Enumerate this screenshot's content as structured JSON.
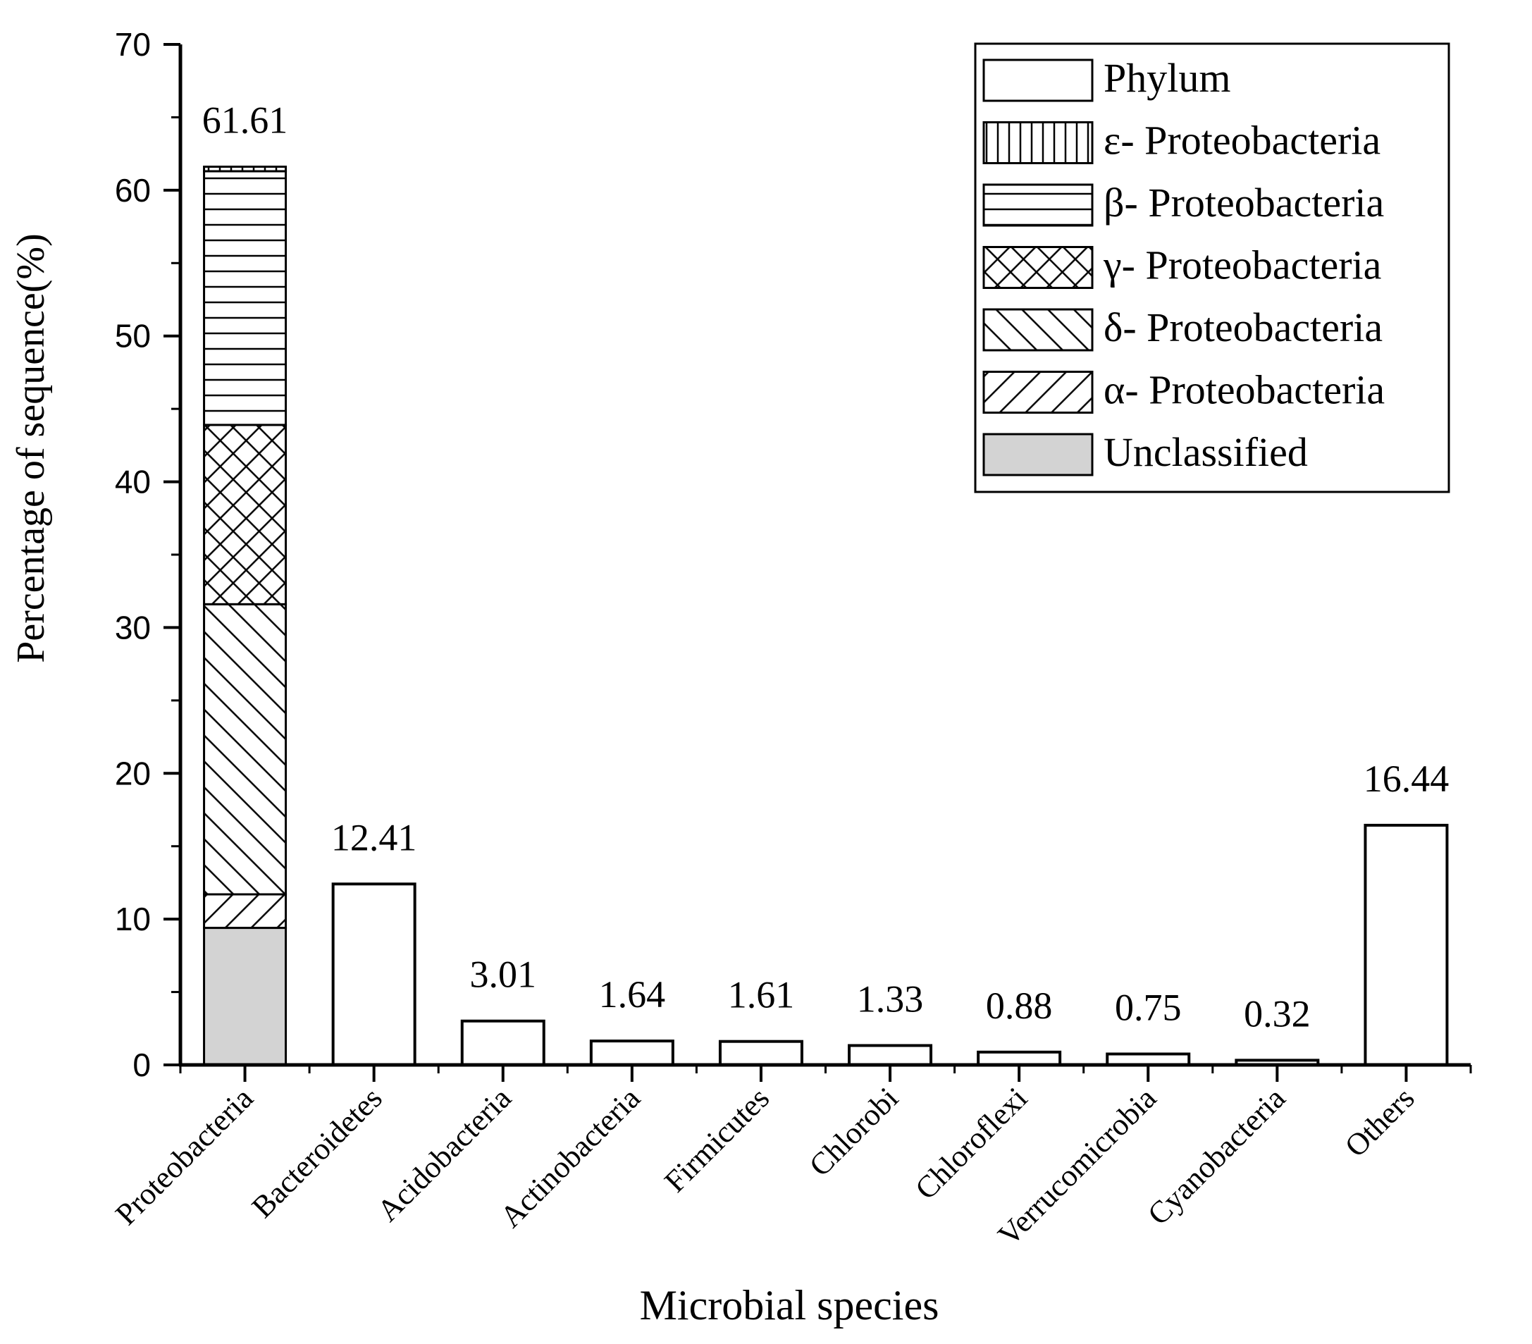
{
  "chart_data": {
    "type": "bar",
    "xlabel": "Microbial species",
    "ylabel": "Percentage of sequence(%)",
    "ylim": [
      0,
      70
    ],
    "yticks": [
      0,
      10,
      20,
      30,
      40,
      50,
      60,
      70
    ],
    "grid": false,
    "legend_position": "top-right",
    "categories": [
      "Proteobacteria",
      "Bacteroidetes",
      "Acidobacteria",
      "Actinobacteria",
      "Firmicutes",
      "Chlorobi",
      "Chloroflexi",
      "Verrucomicrobia",
      "Cyanobacteria",
      "Others"
    ],
    "values": [
      61.61,
      12.41,
      3.01,
      1.64,
      1.61,
      1.33,
      0.88,
      0.75,
      0.32,
      16.44
    ],
    "data_labels": [
      "61.61",
      "12.41",
      "3.01",
      "1.64",
      "1.61",
      "1.33",
      "0.88",
      "0.75",
      "0.32",
      "16.44"
    ],
    "stack": {
      "category": "Proteobacteria",
      "segments": [
        {
          "name": "Unclassified",
          "pattern": "gray",
          "value": 9.4
        },
        {
          "name": "α- Proteobacteria",
          "pattern": "forward-diagonal",
          "value": 2.3
        },
        {
          "name": "δ- Proteobacteria",
          "pattern": "back-diagonal",
          "value": 19.9
        },
        {
          "name": "γ- Proteobacteria",
          "pattern": "crosshatch",
          "value": 12.3
        },
        {
          "name": "β- Proteobacteria",
          "pattern": "horizontal",
          "value": 17.4
        },
        {
          "name": "ε- Proteobacteria",
          "pattern": "vertical",
          "value": 0.31
        }
      ]
    },
    "legend": [
      {
        "name": "Phylum",
        "pattern": "none"
      },
      {
        "name": "ε- Proteobacteria",
        "pattern": "vertical"
      },
      {
        "name": "β- Proteobacteria",
        "pattern": "horizontal"
      },
      {
        "name": "γ- Proteobacteria",
        "pattern": "crosshatch"
      },
      {
        "name": "δ- Proteobacteria",
        "pattern": "back-diagonal"
      },
      {
        "name": "α- Proteobacteria",
        "pattern": "forward-diagonal"
      },
      {
        "name": "Unclassified",
        "pattern": "gray"
      }
    ],
    "colors": {
      "unclassified_fill": "#d3d3d3",
      "bar_outline": "#000000",
      "background": "#ffffff"
    }
  }
}
